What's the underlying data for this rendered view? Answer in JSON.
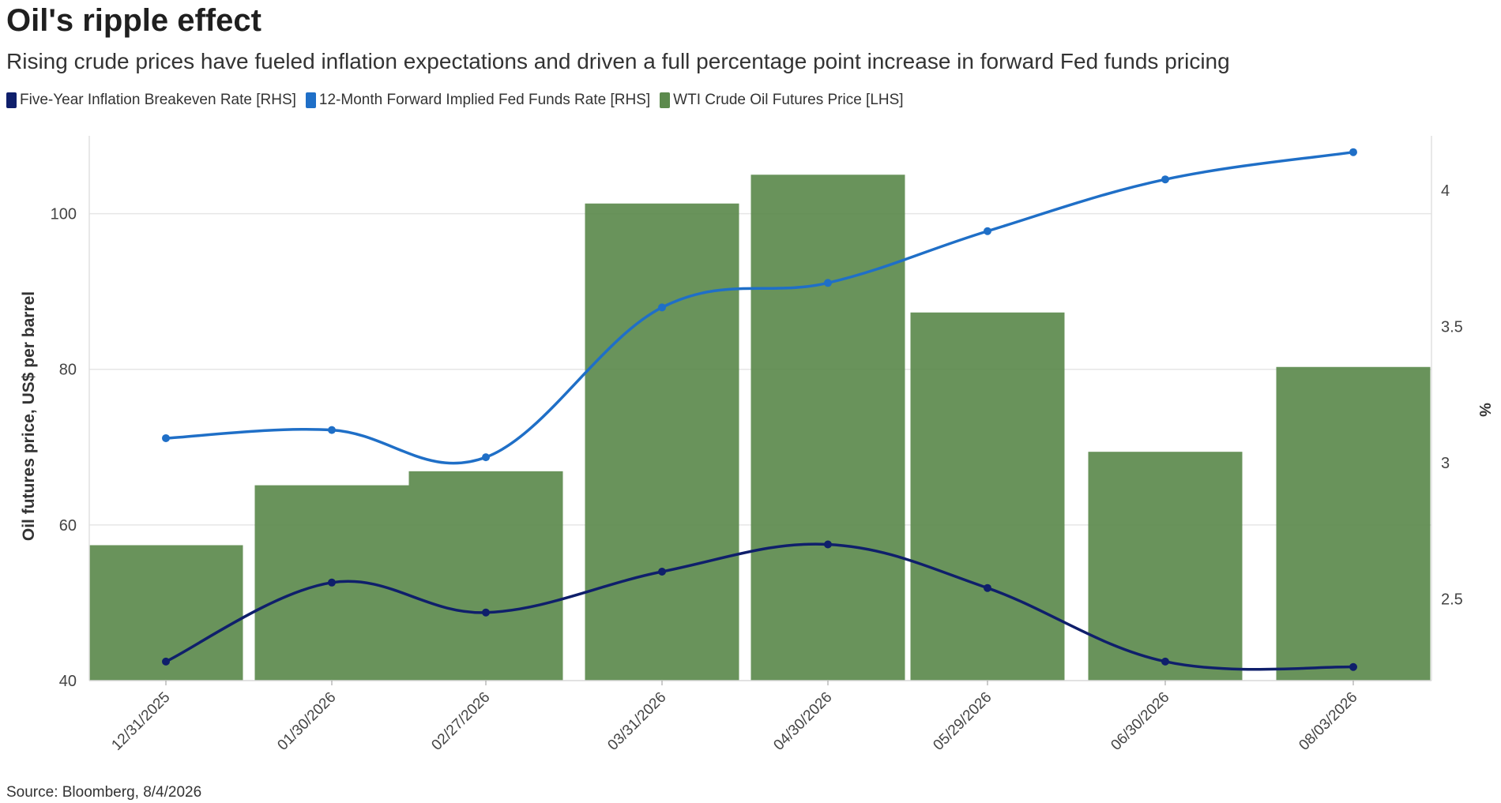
{
  "title": "Oil's ripple effect",
  "subtitle": "Rising crude prices have fueled inflation expectations and driven a full percentage point increase in forward Fed funds pricing",
  "source": "Source: Bloomberg, 8/4/2026",
  "colors": {
    "breakeven": "#0f1f6b",
    "fedfunds": "#1f6fc7",
    "oil": "#5c8a4d",
    "grid": "#e6e6e6"
  },
  "legend": [
    {
      "label": "Five-Year Inflation Breakeven Rate [RHS]",
      "color": "#0f1f6b"
    },
    {
      "label": "12-Month Forward Implied Fed Funds Rate [RHS]",
      "color": "#1f6fc7"
    },
    {
      "label": "WTI Crude Oil Futures Price [LHS]",
      "color": "#5c8a4d"
    }
  ],
  "chart_data": {
    "type": "bar",
    "categories": [
      "12/31/2025",
      "01/30/2026",
      "02/27/2026",
      "03/31/2026",
      "04/30/2026",
      "05/29/2026",
      "06/30/2026",
      "08/03/2026"
    ],
    "series": [
      {
        "name": "WTI Crude Oil Futures Price [LHS]",
        "type": "bar",
        "axis": "left",
        "values": [
          57.4,
          65.1,
          66.9,
          101.3,
          105.0,
          87.3,
          69.4,
          80.3
        ]
      },
      {
        "name": "12-Month Forward Implied Fed Funds Rate [RHS]",
        "type": "line",
        "axis": "right",
        "values": [
          3.09,
          3.12,
          3.02,
          3.57,
          3.66,
          3.85,
          4.04,
          4.14
        ]
      },
      {
        "name": "Five-Year Inflation Breakeven Rate [RHS]",
        "type": "line",
        "axis": "right",
        "values": [
          2.27,
          2.56,
          2.45,
          2.6,
          2.7,
          2.54,
          2.27,
          2.25
        ]
      }
    ],
    "left_axis": {
      "label": "Oil futures price, US$ per barrel",
      "ylim": [
        40,
        110
      ],
      "ticks": [
        40,
        60,
        80,
        100
      ]
    },
    "right_axis": {
      "label": "%",
      "ylim": [
        2.2,
        4.2
      ],
      "ticks": [
        "2.5",
        "3",
        "3.5",
        "4"
      ]
    },
    "grid": true,
    "legend_position": "top-left"
  }
}
